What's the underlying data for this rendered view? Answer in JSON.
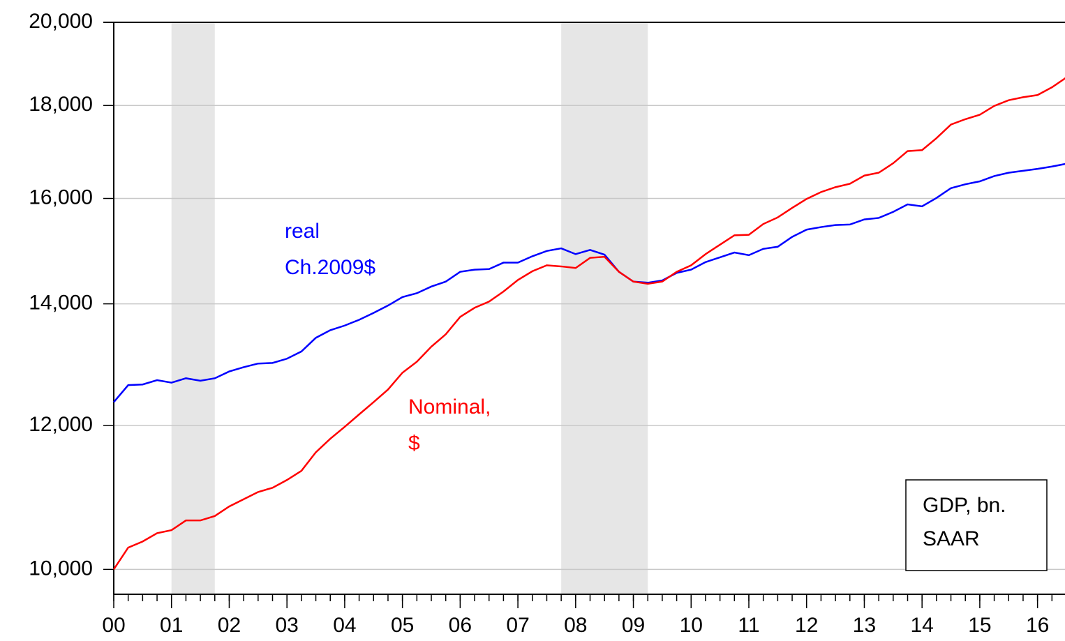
{
  "chart_data": {
    "type": "line",
    "x": [
      2000,
      2000.25,
      2000.5,
      2000.75,
      2001,
      2001.25,
      2001.5,
      2001.75,
      2002,
      2002.25,
      2002.5,
      2002.75,
      2003,
      2003.25,
      2003.5,
      2003.75,
      2004,
      2004.25,
      2004.5,
      2004.75,
      2005,
      2005.25,
      2005.5,
      2005.75,
      2006,
      2006.25,
      2006.5,
      2006.75,
      2007,
      2007.25,
      2007.5,
      2007.75,
      2008,
      2008.25,
      2008.5,
      2008.75,
      2009,
      2009.25,
      2009.5,
      2009.75,
      2010,
      2010.25,
      2010.5,
      2010.75,
      2011,
      2011.25,
      2011.5,
      2011.75,
      2012,
      2012.25,
      2012.5,
      2012.75,
      2013,
      2013.25,
      2013.5,
      2013.75,
      2014,
      2014.25,
      2014.5,
      2014.75,
      2015,
      2015.25,
      2015.5,
      2015.75,
      2016,
      2016.25,
      2016.5
    ],
    "series": [
      {
        "color": "#0000ff",
        "values": [
          12360,
          12630,
          12640,
          12710,
          12670,
          12740,
          12700,
          12740,
          12850,
          12920,
          12980,
          12990,
          13060,
          13180,
          13410,
          13540,
          13620,
          13720,
          13840,
          13970,
          14120,
          14190,
          14310,
          14400,
          14580,
          14620,
          14630,
          14750,
          14750,
          14870,
          14970,
          15020,
          14910,
          14990,
          14900,
          14580,
          14400,
          14380,
          14420,
          14560,
          14620,
          14760,
          14850,
          14940,
          14890,
          15010,
          15050,
          15240,
          15380,
          15430,
          15470,
          15480,
          15580,
          15610,
          15730,
          15880,
          15840,
          16010,
          16210,
          16290,
          16350,
          16460,
          16530,
          16570,
          16610,
          16660,
          16720
        ]
      },
      {
        "color": "#ff0000",
        "values": [
          10000,
          10280,
          10360,
          10470,
          10510,
          10640,
          10640,
          10700,
          10830,
          10930,
          11030,
          11090,
          11200,
          11330,
          11600,
          11800,
          11980,
          12170,
          12360,
          12560,
          12830,
          13010,
          13260,
          13470,
          13770,
          13930,
          14040,
          14220,
          14430,
          14590,
          14700,
          14680,
          14650,
          14840,
          14860,
          14580,
          14400,
          14360,
          14400,
          14580,
          14700,
          14910,
          15090,
          15270,
          15280,
          15490,
          15620,
          15810,
          15990,
          16130,
          16230,
          16300,
          16470,
          16530,
          16730,
          16990,
          17010,
          17270,
          17570,
          17690,
          17790,
          17990,
          18120,
          18190,
          18240,
          18420,
          18650
        ]
      }
    ],
    "shaded_regions": [
      [
        2001,
        2001.75
      ],
      [
        2007.75,
        2009.25
      ]
    ],
    "annotations": [
      {
        "lines": [
          "real",
          "Ch.2009$"
        ],
        "color": "#0000ff"
      },
      {
        "lines": [
          "Nominal,",
          "$"
        ],
        "color": "#ff0000"
      }
    ],
    "note_box": [
      "GDP, bn.",
      "SAAR"
    ],
    "xlim": [
      2000,
      2016.5
    ],
    "xticks": [
      {
        "value": 2000,
        "label": "00"
      },
      {
        "value": 2001,
        "label": "01"
      },
      {
        "value": 2002,
        "label": "02"
      },
      {
        "value": 2003,
        "label": "03"
      },
      {
        "value": 2004,
        "label": "04"
      },
      {
        "value": 2005,
        "label": "05"
      },
      {
        "value": 2006,
        "label": "06"
      },
      {
        "value": 2007,
        "label": "07"
      },
      {
        "value": 2008,
        "label": "08"
      },
      {
        "value": 2009,
        "label": "09"
      },
      {
        "value": 2010,
        "label": "10"
      },
      {
        "value": 2011,
        "label": "11"
      },
      {
        "value": 2012,
        "label": "12"
      },
      {
        "value": 2013,
        "label": "13"
      },
      {
        "value": 2014,
        "label": "14"
      },
      {
        "value": 2015,
        "label": "15"
      },
      {
        "value": 2016,
        "label": "16"
      }
    ],
    "ylim": [
      9690,
      20000
    ],
    "yticks": [
      {
        "value": 10000,
        "label": "10,000"
      },
      {
        "value": 12000,
        "label": "12,000"
      },
      {
        "value": 14000,
        "label": "14,000"
      },
      {
        "value": 16000,
        "label": "16,000"
      },
      {
        "value": 18000,
        "label": "18,000"
      },
      {
        "value": 20000,
        "label": "20,000"
      }
    ],
    "log_y": true,
    "grid": true
  }
}
